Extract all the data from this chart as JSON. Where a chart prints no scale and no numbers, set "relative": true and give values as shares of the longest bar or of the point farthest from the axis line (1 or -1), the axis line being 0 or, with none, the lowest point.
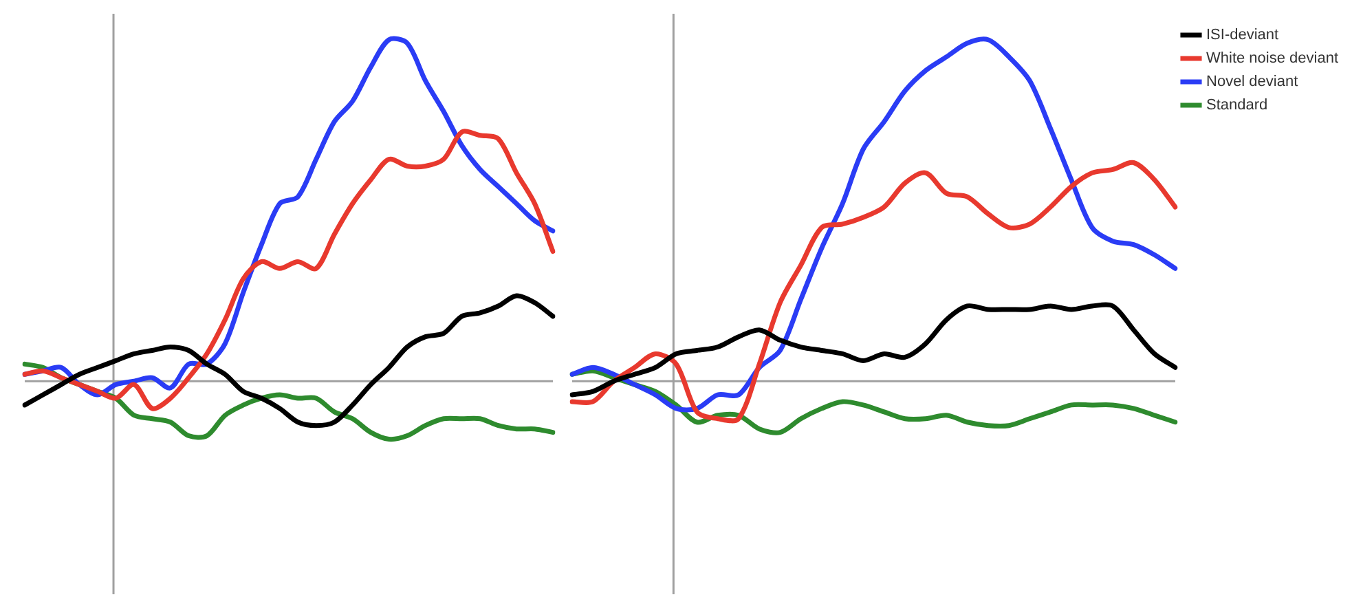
{
  "chart_data": [
    {
      "type": "line",
      "relative": true,
      "legend": false,
      "categories": [
        null,
        null,
        null,
        null,
        null,
        null,
        null,
        null,
        null,
        null,
        null,
        null,
        null,
        null,
        null,
        null,
        null,
        null,
        null,
        null,
        null,
        null,
        null,
        null,
        null,
        null,
        null,
        null,
        null,
        null
      ],
      "series": [
        {
          "color": "#000000",
          "values": [
            -0.07,
            -0.04,
            -0.01,
            0.02,
            0.04,
            0.06,
            0.08,
            0.09,
            0.1,
            0.09,
            0.05,
            0.02,
            -0.03,
            -0.05,
            -0.08,
            -0.12,
            -0.13,
            -0.12,
            -0.07,
            -0.01,
            0.04,
            0.1,
            0.13,
            0.14,
            0.19,
            0.2,
            0.22,
            0.25,
            0.23,
            0.19
          ]
        },
        {
          "color": "#e8392e",
          "values": [
            0.02,
            0.03,
            0.01,
            -0.01,
            -0.03,
            -0.05,
            -0.01,
            -0.08,
            -0.05,
            0.01,
            0.08,
            0.18,
            0.3,
            0.35,
            0.33,
            0.35,
            0.33,
            0.43,
            0.52,
            0.59,
            0.65,
            0.63,
            0.63,
            0.65,
            0.73,
            0.72,
            0.71,
            0.61,
            0.52,
            0.38
          ]
        },
        {
          "color": "#2a3cf5",
          "values": [
            0.02,
            0.03,
            0.04,
            -0.01,
            -0.04,
            -0.01,
            0,
            0.01,
            -0.02,
            0.05,
            0.05,
            0.11,
            0.26,
            0.4,
            0.52,
            0.54,
            0.65,
            0.76,
            0.82,
            0.92,
            1,
            0.99,
            0.88,
            0.79,
            0.69,
            0.62,
            0.57,
            0.52,
            0.47,
            0.44
          ]
        },
        {
          "color": "#2e8b2e",
          "values": [
            0.05,
            0.04,
            0.01,
            -0.01,
            -0.03,
            -0.05,
            -0.1,
            -0.11,
            -0.12,
            -0.16,
            -0.16,
            -0.1,
            -0.07,
            -0.05,
            -0.04,
            -0.05,
            -0.05,
            -0.09,
            -0.11,
            -0.15,
            -0.17,
            -0.16,
            -0.13,
            -0.11,
            -0.11,
            -0.11,
            -0.13,
            -0.14,
            -0.14,
            -0.15
          ]
        }
      ]
    },
    {
      "type": "line",
      "relative": true,
      "legend": "top right",
      "categories": [
        null,
        null,
        null,
        null,
        null,
        null,
        null,
        null,
        null,
        null,
        null,
        null,
        null,
        null,
        null,
        null,
        null,
        null,
        null,
        null,
        null,
        null,
        null,
        null,
        null,
        null,
        null,
        null,
        null,
        null
      ],
      "series": [
        {
          "name": "ISI-deviant",
          "color": "#000000",
          "values": [
            -0.04,
            -0.03,
            0,
            0.02,
            0.04,
            0.08,
            0.09,
            0.1,
            0.13,
            0.15,
            0.12,
            0.1,
            0.09,
            0.08,
            0.06,
            0.08,
            0.07,
            0.11,
            0.18,
            0.22,
            0.21,
            0.21,
            0.21,
            0.22,
            0.21,
            0.22,
            0.22,
            0.15,
            0.08,
            0.04
          ]
        },
        {
          "name": "White noise deviant",
          "color": "#e8392e",
          "values": [
            -0.06,
            -0.06,
            0,
            0.04,
            0.08,
            0.05,
            -0.09,
            -0.11,
            -0.11,
            0.05,
            0.23,
            0.34,
            0.45,
            0.46,
            0.48,
            0.51,
            0.58,
            0.61,
            0.55,
            0.54,
            0.49,
            0.45,
            0.46,
            0.51,
            0.57,
            0.61,
            0.62,
            0.64,
            0.59,
            0.51
          ]
        },
        {
          "name": "Novel deviant",
          "color": "#2a3cf5",
          "values": [
            0.02,
            0.04,
            0.02,
            -0.01,
            -0.04,
            -0.08,
            -0.08,
            -0.04,
            -0.04,
            0.04,
            0.09,
            0.24,
            0.39,
            0.52,
            0.68,
            0.76,
            0.85,
            0.91,
            0.95,
            0.99,
            1,
            0.95,
            0.88,
            0.74,
            0.59,
            0.45,
            0.41,
            0.4,
            0.37,
            0.33
          ]
        },
        {
          "name": "Standard",
          "color": "#2e8b2e",
          "values": [
            0.02,
            0.03,
            0.01,
            -0.01,
            -0.03,
            -0.07,
            -0.12,
            -0.1,
            -0.1,
            -0.14,
            -0.15,
            -0.11,
            -0.08,
            -0.06,
            -0.07,
            -0.09,
            -0.11,
            -0.11,
            -0.1,
            -0.12,
            -0.13,
            -0.13,
            -0.11,
            -0.09,
            -0.07,
            -0.07,
            -0.07,
            -0.08,
            -0.1,
            -0.12
          ]
        }
      ]
    }
  ]
}
